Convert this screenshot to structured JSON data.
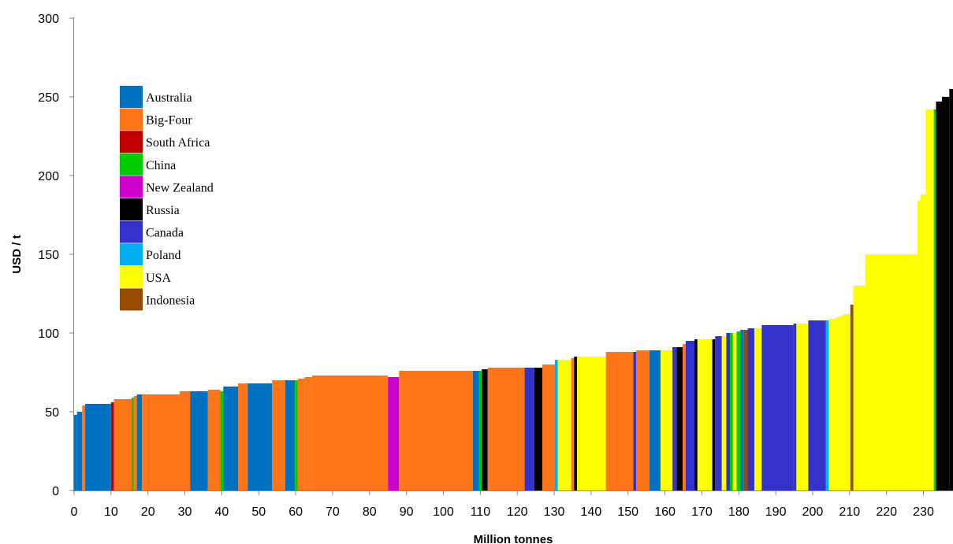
{
  "chart_data": {
    "type": "bar",
    "xlabel": "Million tonnes",
    "ylabel": "USD / t",
    "xlim": [
      0,
      238
    ],
    "ylim": [
      0,
      300
    ],
    "xticks": [
      0,
      10,
      20,
      30,
      40,
      50,
      60,
      70,
      80,
      90,
      100,
      110,
      120,
      130,
      140,
      150,
      160,
      170,
      180,
      190,
      200,
      210,
      220,
      230
    ],
    "yticks": [
      0,
      50,
      100,
      150,
      200,
      250,
      300
    ],
    "grid": false,
    "legend_position": "top-left",
    "legend": [
      {
        "name": "Australia",
        "color": "#0070C0"
      },
      {
        "name": "Big-Four",
        "color": "#FF7518"
      },
      {
        "name": "South Africa",
        "color": "#C00000"
      },
      {
        "name": "China",
        "color": "#00CC00"
      },
      {
        "name": "New Zealand",
        "color": "#CC00CC"
      },
      {
        "name": "Russia",
        "color": "#000000"
      },
      {
        "name": "Canada",
        "color": "#3333CC"
      },
      {
        "name": "Poland",
        "color": "#00B0F0"
      },
      {
        "name": "USA",
        "color": "#FFFF00"
      },
      {
        "name": "Indonesia",
        "color": "#964B00"
      }
    ],
    "bars": [
      {
        "x0": 0,
        "x1": 0.8,
        "y": 48,
        "s": "Australia"
      },
      {
        "x0": 0.8,
        "x1": 2.2,
        "y": 50,
        "s": "Australia"
      },
      {
        "x0": 2.2,
        "x1": 3,
        "y": 54,
        "s": "Big-Four"
      },
      {
        "x0": 3,
        "x1": 10,
        "y": 55,
        "s": "Australia"
      },
      {
        "x0": 10,
        "x1": 10.8,
        "y": 56,
        "s": "South Africa"
      },
      {
        "x0": 10.8,
        "x1": 15.6,
        "y": 58,
        "s": "Big-Four"
      },
      {
        "x0": 15.6,
        "x1": 16.2,
        "y": 59,
        "s": "China"
      },
      {
        "x0": 16.2,
        "x1": 17,
        "y": 60,
        "s": "Big-Four"
      },
      {
        "x0": 17,
        "x1": 18.4,
        "y": 61,
        "s": "Australia"
      },
      {
        "x0": 18.4,
        "x1": 28.6,
        "y": 61,
        "s": "Big-Four"
      },
      {
        "x0": 28.6,
        "x1": 31.4,
        "y": 63,
        "s": "Big-Four"
      },
      {
        "x0": 31.4,
        "x1": 36.2,
        "y": 63,
        "s": "Australia"
      },
      {
        "x0": 36.2,
        "x1": 39.6,
        "y": 64,
        "s": "Big-Four"
      },
      {
        "x0": 39.6,
        "x1": 40.4,
        "y": 63,
        "s": "China"
      },
      {
        "x0": 40.4,
        "x1": 44.4,
        "y": 66,
        "s": "Australia"
      },
      {
        "x0": 44.4,
        "x1": 47,
        "y": 68,
        "s": "Big-Four"
      },
      {
        "x0": 47,
        "x1": 53.6,
        "y": 68,
        "s": "Australia"
      },
      {
        "x0": 53.6,
        "x1": 57.2,
        "y": 70,
        "s": "Big-Four"
      },
      {
        "x0": 57.2,
        "x1": 59.8,
        "y": 70,
        "s": "Australia"
      },
      {
        "x0": 59.8,
        "x1": 60.6,
        "y": 70,
        "s": "China"
      },
      {
        "x0": 60.6,
        "x1": 62.4,
        "y": 71,
        "s": "Big-Four"
      },
      {
        "x0": 62.4,
        "x1": 64.4,
        "y": 72,
        "s": "Big-Four"
      },
      {
        "x0": 64.4,
        "x1": 85,
        "y": 73,
        "s": "Big-Four"
      },
      {
        "x0": 85,
        "x1": 88,
        "y": 72,
        "s": "New Zealand"
      },
      {
        "x0": 88,
        "x1": 108,
        "y": 76,
        "s": "Big-Four"
      },
      {
        "x0": 108,
        "x1": 109.6,
        "y": 76,
        "s": "Australia"
      },
      {
        "x0": 109.6,
        "x1": 110.4,
        "y": 76,
        "s": "China"
      },
      {
        "x0": 110.4,
        "x1": 112,
        "y": 77,
        "s": "Russia"
      },
      {
        "x0": 112,
        "x1": 122,
        "y": 78,
        "s": "Big-Four"
      },
      {
        "x0": 122,
        "x1": 124.6,
        "y": 78,
        "s": "Canada"
      },
      {
        "x0": 124.6,
        "x1": 126.8,
        "y": 78,
        "s": "Russia"
      },
      {
        "x0": 126.8,
        "x1": 130.2,
        "y": 80,
        "s": "Big-Four"
      },
      {
        "x0": 130.2,
        "x1": 131,
        "y": 83,
        "s": "Poland"
      },
      {
        "x0": 131,
        "x1": 134.6,
        "y": 83,
        "s": "USA"
      },
      {
        "x0": 134.6,
        "x1": 135.4,
        "y": 84,
        "s": "Big-Four"
      },
      {
        "x0": 135.4,
        "x1": 136.2,
        "y": 85,
        "s": "Russia"
      },
      {
        "x0": 136.2,
        "x1": 144,
        "y": 85,
        "s": "USA"
      },
      {
        "x0": 144,
        "x1": 151.4,
        "y": 88,
        "s": "Big-Four"
      },
      {
        "x0": 151.4,
        "x1": 152.2,
        "y": 88,
        "s": "Canada"
      },
      {
        "x0": 152.2,
        "x1": 155.8,
        "y": 89,
        "s": "Big-Four"
      },
      {
        "x0": 155.8,
        "x1": 158.8,
        "y": 89,
        "s": "Australia"
      },
      {
        "x0": 158.8,
        "x1": 162,
        "y": 89,
        "s": "USA"
      },
      {
        "x0": 162,
        "x1": 163.2,
        "y": 91,
        "s": "Canada"
      },
      {
        "x0": 163.2,
        "x1": 164.8,
        "y": 91,
        "s": "Russia"
      },
      {
        "x0": 164.8,
        "x1": 165.6,
        "y": 93,
        "s": "Big-Four"
      },
      {
        "x0": 165.6,
        "x1": 168,
        "y": 95,
        "s": "Canada"
      },
      {
        "x0": 168,
        "x1": 168.8,
        "y": 96,
        "s": "Russia"
      },
      {
        "x0": 168.8,
        "x1": 172.8,
        "y": 96,
        "s": "USA"
      },
      {
        "x0": 172.8,
        "x1": 173.6,
        "y": 96,
        "s": "Russia"
      },
      {
        "x0": 173.6,
        "x1": 175.4,
        "y": 98,
        "s": "Canada"
      },
      {
        "x0": 175.4,
        "x1": 176.6,
        "y": 98,
        "s": "USA"
      },
      {
        "x0": 176.6,
        "x1": 177.6,
        "y": 100,
        "s": "Canada"
      },
      {
        "x0": 177.6,
        "x1": 178.4,
        "y": 100,
        "s": "China"
      },
      {
        "x0": 178.4,
        "x1": 179.4,
        "y": 100,
        "s": "USA"
      },
      {
        "x0": 179.4,
        "x1": 180.4,
        "y": 101,
        "s": "China"
      },
      {
        "x0": 180.4,
        "x1": 181.4,
        "y": 102,
        "s": "Australia"
      },
      {
        "x0": 181.4,
        "x1": 182.4,
        "y": 102,
        "s": "Indonesia"
      },
      {
        "x0": 182.4,
        "x1": 184.2,
        "y": 103,
        "s": "Canada"
      },
      {
        "x0": 184.2,
        "x1": 186.2,
        "y": 103,
        "s": "USA"
      },
      {
        "x0": 186.2,
        "x1": 194.8,
        "y": 105,
        "s": "Canada"
      },
      {
        "x0": 194.8,
        "x1": 195.6,
        "y": 106,
        "s": "Canada"
      },
      {
        "x0": 195.6,
        "x1": 198.8,
        "y": 106,
        "s": "USA"
      },
      {
        "x0": 198.8,
        "x1": 203.6,
        "y": 108,
        "s": "Canada"
      },
      {
        "x0": 203.6,
        "x1": 204.4,
        "y": 108,
        "s": "Poland"
      },
      {
        "x0": 204.4,
        "x1": 206.2,
        "y": 109,
        "s": "USA"
      },
      {
        "x0": 206.2,
        "x1": 207.2,
        "y": 110,
        "s": "USA"
      },
      {
        "x0": 207.2,
        "x1": 208.2,
        "y": 111,
        "s": "USA"
      },
      {
        "x0": 208.2,
        "x1": 210.2,
        "y": 112,
        "s": "USA"
      },
      {
        "x0": 210.2,
        "x1": 211,
        "y": 118,
        "s": "Indonesia"
      },
      {
        "x0": 211,
        "x1": 214.2,
        "y": 130,
        "s": "USA"
      },
      {
        "x0": 214.2,
        "x1": 228.4,
        "y": 150,
        "s": "USA"
      },
      {
        "x0": 228.4,
        "x1": 229.2,
        "y": 184,
        "s": "USA"
      },
      {
        "x0": 229.2,
        "x1": 230.6,
        "y": 188,
        "s": "USA"
      },
      {
        "x0": 230.6,
        "x1": 232.8,
        "y": 242,
        "s": "USA"
      },
      {
        "x0": 232.8,
        "x1": 233.4,
        "y": 242,
        "s": "China"
      },
      {
        "x0": 233.4,
        "x1": 235,
        "y": 247,
        "s": "Russia"
      },
      {
        "x0": 235,
        "x1": 237,
        "y": 250,
        "s": "Russia"
      },
      {
        "x0": 237,
        "x1": 238,
        "y": 255,
        "s": "Russia"
      }
    ]
  }
}
